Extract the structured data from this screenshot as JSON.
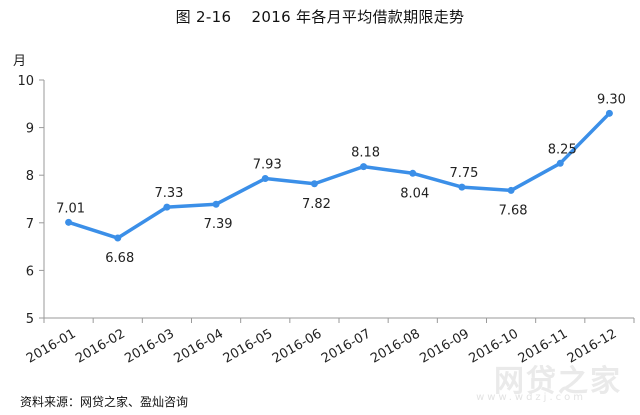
{
  "chart_data": {
    "type": "line",
    "title": "图 2-16    2016 年各月平均借款期限走势",
    "ylabel": "月",
    "xlabel": "",
    "ylim": [
      5,
      10
    ],
    "yticks": [
      "5",
      "6",
      "7",
      "8",
      "9",
      "10"
    ],
    "grid": false,
    "categories": [
      "2016-01",
      "2016-02",
      "2016-03",
      "2016-04",
      "2016-05",
      "2016-06",
      "2016-07",
      "2016-08",
      "2016-09",
      "2016-10",
      "2016-11",
      "2016-12"
    ],
    "series": [
      {
        "values": [
          7.01,
          6.68,
          7.33,
          7.39,
          7.93,
          7.82,
          8.18,
          8.04,
          7.75,
          7.68,
          8.25,
          9.3
        ],
        "labels": [
          "7.01",
          "6.68",
          "7.33",
          "7.39",
          "7.93",
          "7.82",
          "8.18",
          "8.04",
          "7.75",
          "7.68",
          "8.25",
          "9.30"
        ],
        "color": "#3b8fe8"
      }
    ]
  },
  "source": "资料来源：网贷之家、盈灿咨询",
  "watermark": "网贷之家",
  "watermark_sub": "www.wdzj.com"
}
